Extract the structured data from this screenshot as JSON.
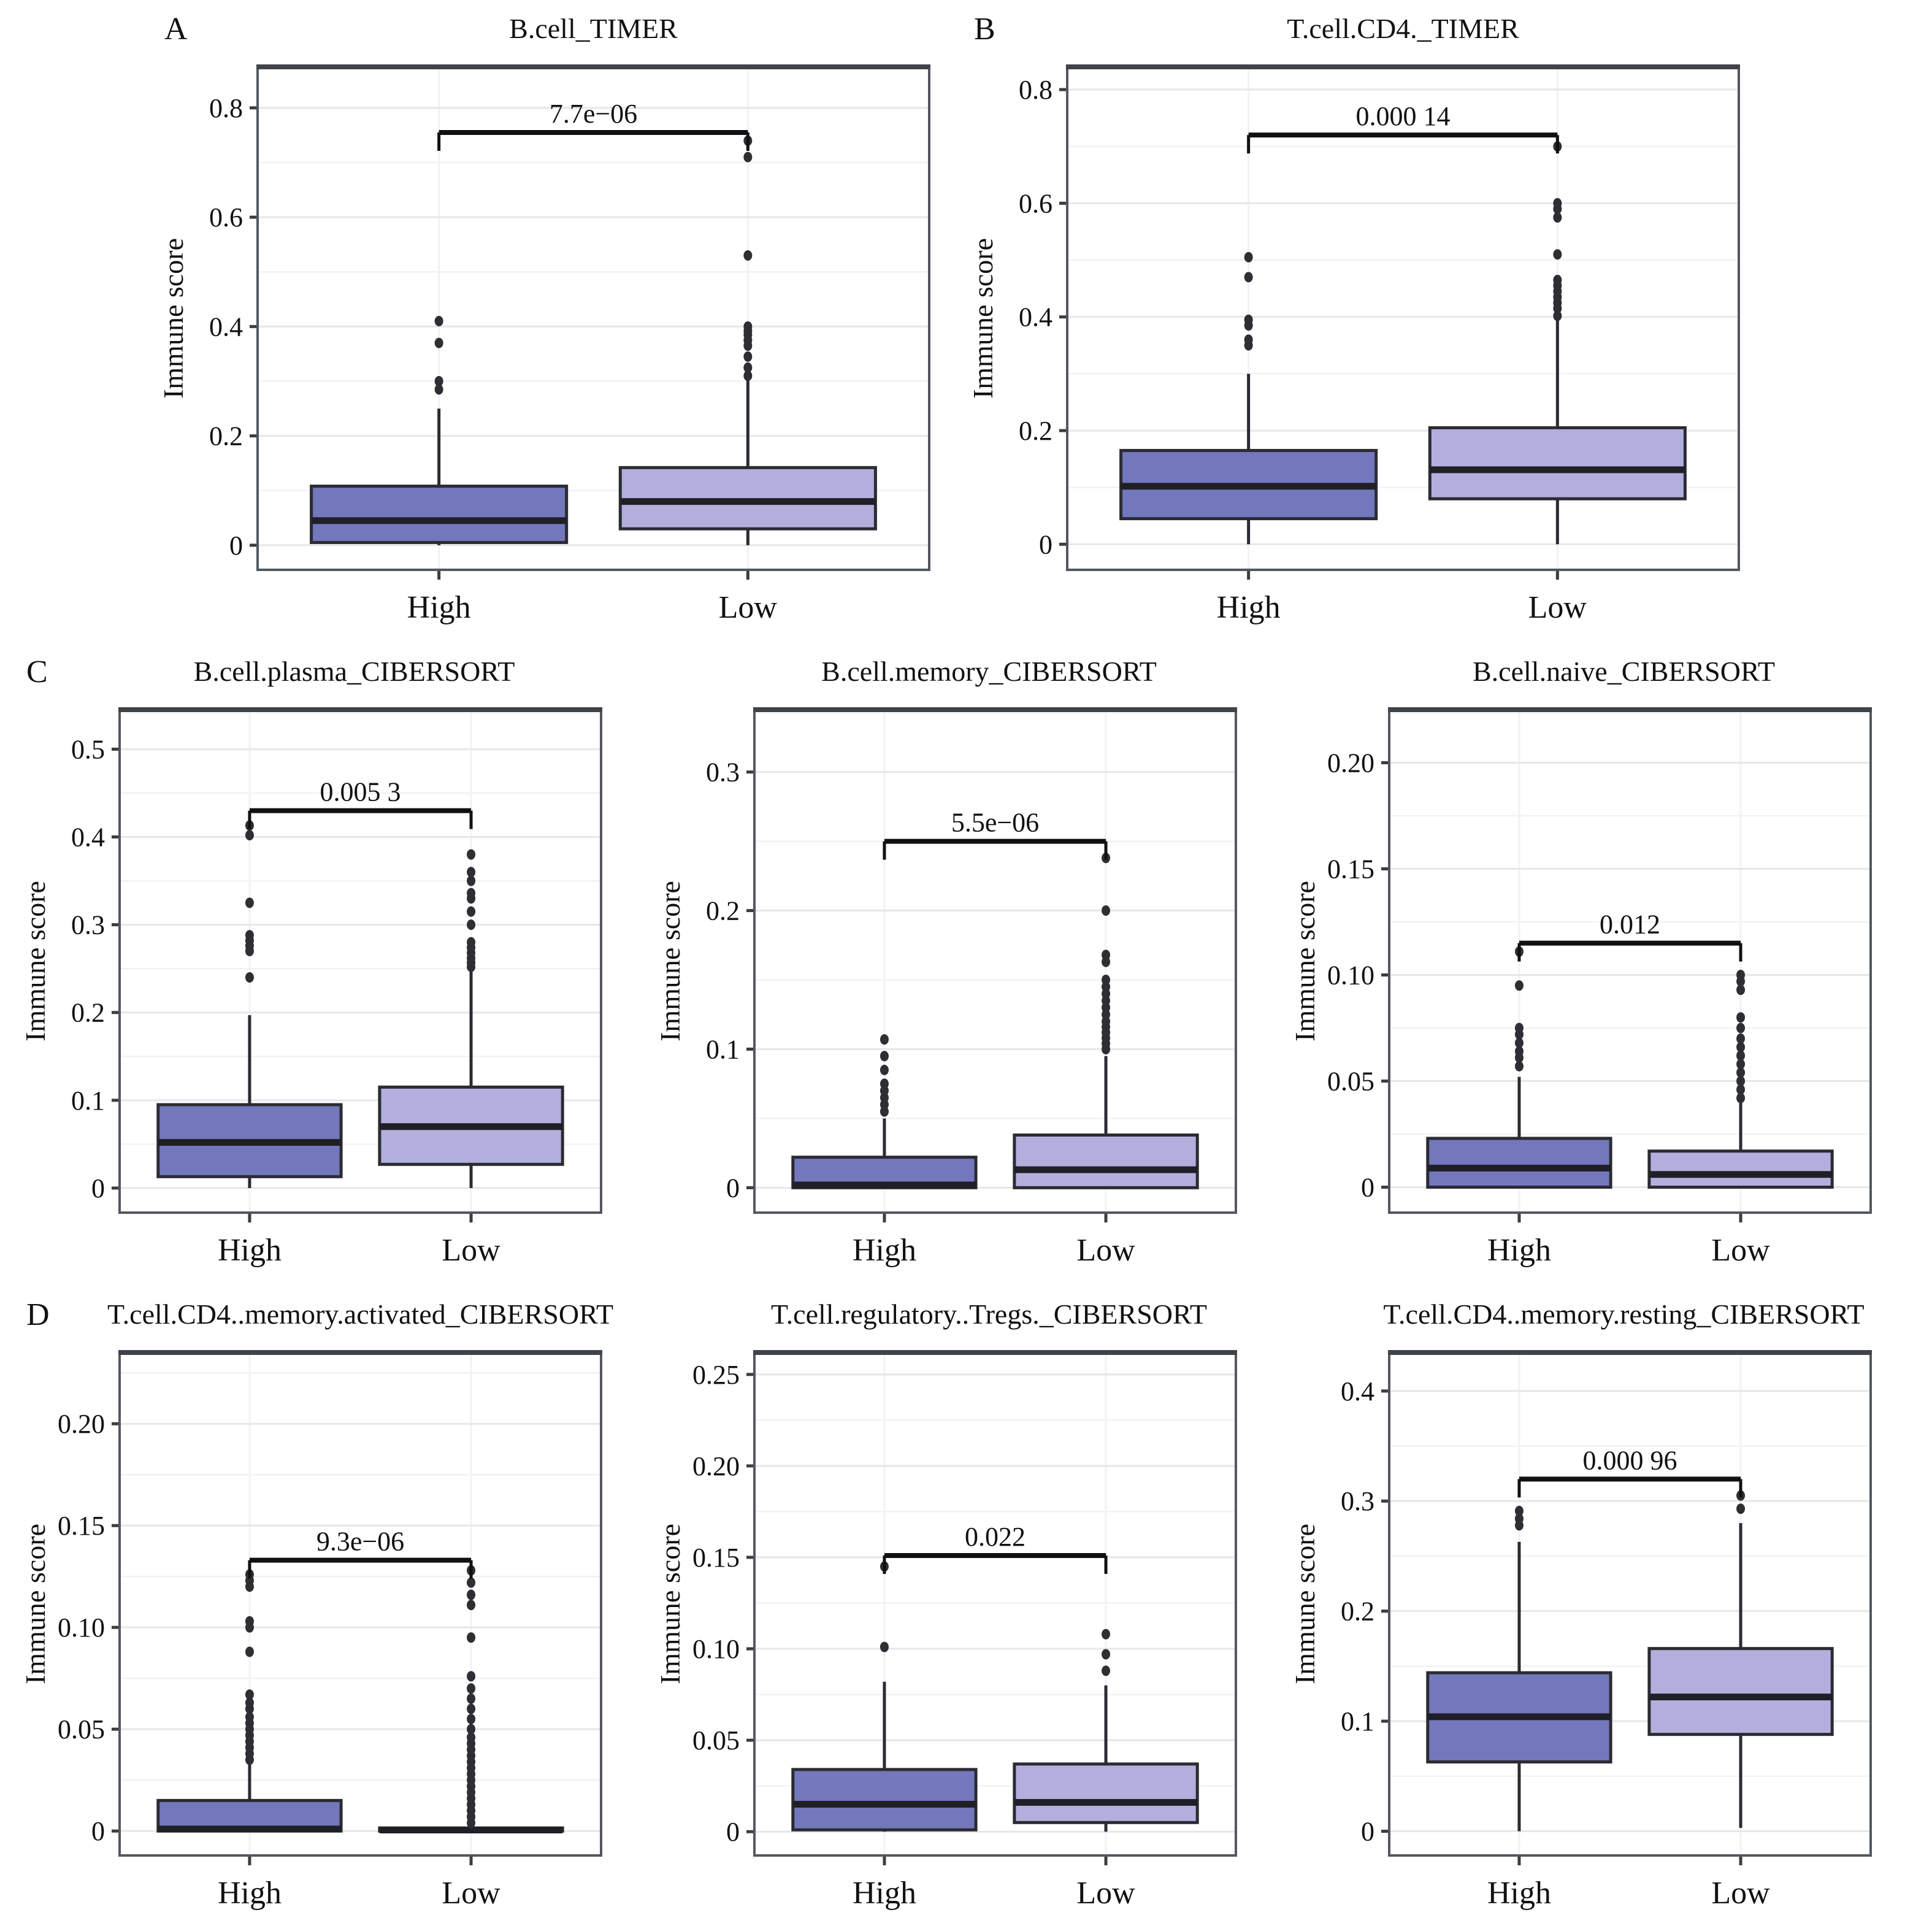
{
  "figure": {
    "background": "#ffffff",
    "ylabel_all": "Immune score"
  },
  "styles": {
    "high_fill": "#7377bb",
    "low_fill": "#b3afdd",
    "box_border": "#2b2b33",
    "median_color": "#1f1f26",
    "outlier_color": "#2e2e33",
    "grid_major": "#e6e6eb",
    "grid_minor": "#f2f2f5",
    "panel_border": "#54585e",
    "panel_border_top": "#404449",
    "tick_color": "#3c3c41",
    "text_color": "#111111",
    "bracket_color": "#111111"
  },
  "chart_data": [
    {
      "type": "box",
      "letter": "A",
      "title": "B.cell_TIMER",
      "ylabel": "Immune score",
      "pvalue": "7.7e−06",
      "bracket_y": 0.755,
      "ylim": [
        -0.045,
        0.875
      ],
      "yticks": [
        {
          "v": 0,
          "label": "0"
        },
        {
          "v": 0.2,
          "label": "0.2"
        },
        {
          "v": 0.4,
          "label": "0.4"
        },
        {
          "v": 0.6,
          "label": "0.6"
        },
        {
          "v": 0.8,
          "label": "0.8"
        }
      ],
      "categories": [
        "High",
        "Low"
      ],
      "groups": [
        {
          "label": "High",
          "fill": "high",
          "wlo": 0,
          "q1": 0.005,
          "med": 0.045,
          "q3": 0.108,
          "whi": 0.25,
          "outliers": [
            0.285,
            0.3,
            0.37,
            0.41
          ]
        },
        {
          "label": "Low",
          "fill": "low",
          "wlo": 0,
          "q1": 0.03,
          "med": 0.08,
          "q3": 0.142,
          "whi": 0.305,
          "outliers": [
            0.31,
            0.325,
            0.345,
            0.365,
            0.375,
            0.385,
            0.392,
            0.4,
            0.53,
            0.71,
            0.74
          ]
        }
      ]
    },
    {
      "type": "box",
      "letter": "B",
      "title": "T.cell.CD4._TIMER",
      "ylabel": "Immune score",
      "pvalue": "0.000 14",
      "bracket_y": 0.72,
      "ylim": [
        -0.045,
        0.84
      ],
      "yticks": [
        {
          "v": 0,
          "label": "0"
        },
        {
          "v": 0.2,
          "label": "0.2"
        },
        {
          "v": 0.4,
          "label": "0.4"
        },
        {
          "v": 0.6,
          "label": "0.6"
        },
        {
          "v": 0.8,
          "label": "0.8"
        }
      ],
      "categories": [
        "High",
        "Low"
      ],
      "groups": [
        {
          "label": "High",
          "fill": "high",
          "wlo": 0,
          "q1": 0.045,
          "med": 0.102,
          "q3": 0.165,
          "whi": 0.3,
          "outliers": [
            0.35,
            0.36,
            0.385,
            0.395,
            0.47,
            0.505
          ]
        },
        {
          "label": "Low",
          "fill": "low",
          "wlo": 0,
          "q1": 0.08,
          "med": 0.131,
          "q3": 0.205,
          "whi": 0.398,
          "outliers": [
            0.402,
            0.415,
            0.425,
            0.435,
            0.445,
            0.455,
            0.465,
            0.51,
            0.575,
            0.59,
            0.6,
            0.7
          ]
        }
      ]
    },
    {
      "type": "box",
      "letter": "C",
      "title": "B.cell.plasma_CIBERSORT",
      "ylabel": "Immune score",
      "pvalue": "0.005 3",
      "bracket_y": 0.43,
      "ylim": [
        -0.028,
        0.545
      ],
      "yticks": [
        {
          "v": 0,
          "label": "0"
        },
        {
          "v": 0.1,
          "label": "0.1"
        },
        {
          "v": 0.2,
          "label": "0.2"
        },
        {
          "v": 0.3,
          "label": "0.3"
        },
        {
          "v": 0.4,
          "label": "0.4"
        },
        {
          "v": 0.5,
          "label": "0.5"
        }
      ],
      "categories": [
        "High",
        "Low"
      ],
      "groups": [
        {
          "label": "High",
          "fill": "high",
          "wlo": 0,
          "q1": 0.013,
          "med": 0.052,
          "q3": 0.095,
          "whi": 0.197,
          "outliers": [
            0.24,
            0.27,
            0.276,
            0.282,
            0.288,
            0.325,
            0.402,
            0.413
          ]
        },
        {
          "label": "Low",
          "fill": "low",
          "wlo": 0,
          "q1": 0.027,
          "med": 0.07,
          "q3": 0.115,
          "whi": 0.248,
          "outliers": [
            0.252,
            0.257,
            0.262,
            0.268,
            0.274,
            0.28,
            0.3,
            0.315,
            0.33,
            0.336,
            0.35,
            0.36,
            0.38
          ]
        }
      ]
    },
    {
      "type": "box",
      "letter": "",
      "title": "B.cell.memory_CIBERSORT",
      "ylabel": "Immune score",
      "pvalue": "5.5e−06",
      "bracket_y": 0.25,
      "ylim": [
        -0.018,
        0.345
      ],
      "yticks": [
        {
          "v": 0,
          "label": "0"
        },
        {
          "v": 0.1,
          "label": "0.1"
        },
        {
          "v": 0.2,
          "label": "0.2"
        },
        {
          "v": 0.3,
          "label": "0.3"
        }
      ],
      "categories": [
        "High",
        "Low"
      ],
      "groups": [
        {
          "label": "High",
          "fill": "high",
          "wlo": 0,
          "q1": 0,
          "med": 0.002,
          "q3": 0.022,
          "whi": 0.05,
          "outliers": [
            0.055,
            0.06,
            0.065,
            0.07,
            0.075,
            0.085,
            0.095,
            0.107
          ]
        },
        {
          "label": "Low",
          "fill": "low",
          "wlo": 0,
          "q1": 0,
          "med": 0.013,
          "q3": 0.038,
          "whi": 0.095,
          "outliers": [
            0.1,
            0.104,
            0.108,
            0.112,
            0.116,
            0.12,
            0.125,
            0.13,
            0.135,
            0.14,
            0.145,
            0.15,
            0.163,
            0.168,
            0.2,
            0.238
          ]
        }
      ]
    },
    {
      "type": "box",
      "letter": "",
      "title": "B.cell.naive_CIBERSORT",
      "ylabel": "Immune score",
      "pvalue": "0.012",
      "bracket_y": 0.115,
      "ylim": [
        -0.012,
        0.225
      ],
      "yticks": [
        {
          "v": 0,
          "label": "0"
        },
        {
          "v": 0.05,
          "label": "0.05"
        },
        {
          "v": 0.1,
          "label": "0.10"
        },
        {
          "v": 0.15,
          "label": "0.15"
        },
        {
          "v": 0.2,
          "label": "0.20"
        }
      ],
      "categories": [
        "High",
        "Low"
      ],
      "groups": [
        {
          "label": "High",
          "fill": "high",
          "wlo": 0,
          "q1": 0,
          "med": 0.009,
          "q3": 0.023,
          "whi": 0.052,
          "outliers": [
            0.057,
            0.061,
            0.064,
            0.068,
            0.072,
            0.075,
            0.095,
            0.111
          ]
        },
        {
          "label": "Low",
          "fill": "low",
          "wlo": 0,
          "q1": 0,
          "med": 0.006,
          "q3": 0.017,
          "whi": 0.04,
          "outliers": [
            0.042,
            0.046,
            0.05,
            0.054,
            0.058,
            0.062,
            0.066,
            0.07,
            0.075,
            0.08,
            0.093,
            0.097,
            0.1
          ]
        }
      ]
    },
    {
      "type": "box",
      "letter": "D",
      "title": "T.cell.CD4..memory.activated_CIBERSORT",
      "ylabel": "Immune score",
      "pvalue": "9.3e−06",
      "bracket_y": 0.133,
      "ylim": [
        -0.012,
        0.235
      ],
      "yticks": [
        {
          "v": 0,
          "label": "0"
        },
        {
          "v": 0.05,
          "label": "0.05"
        },
        {
          "v": 0.1,
          "label": "0.10"
        },
        {
          "v": 0.15,
          "label": "0.15"
        },
        {
          "v": 0.2,
          "label": "0.20"
        }
      ],
      "categories": [
        "High",
        "Low"
      ],
      "groups": [
        {
          "label": "High",
          "fill": "high",
          "wlo": 0,
          "q1": 0,
          "med": 0.001,
          "q3": 0.015,
          "whi": 0.033,
          "outliers": [
            0.035,
            0.038,
            0.041,
            0.044,
            0.047,
            0.05,
            0.053,
            0.056,
            0.06,
            0.063,
            0.067,
            0.088,
            0.1,
            0.103,
            0.12,
            0.123,
            0.126
          ]
        },
        {
          "label": "Low",
          "fill": "low",
          "wlo": 0,
          "q1": 0,
          "med": 0.0005,
          "q3": 0.0015,
          "whi": 0.0015,
          "outliers": [
            0.004,
            0.007,
            0.01,
            0.013,
            0.016,
            0.019,
            0.022,
            0.025,
            0.028,
            0.031,
            0.034,
            0.037,
            0.04,
            0.043,
            0.046,
            0.05,
            0.055,
            0.06,
            0.065,
            0.07,
            0.076,
            0.095,
            0.111,
            0.116,
            0.122,
            0.128
          ]
        }
      ]
    },
    {
      "type": "box",
      "letter": "",
      "title": "T.cell.regulatory..Tregs._CIBERSORT",
      "ylabel": "Immune score",
      "pvalue": "0.022",
      "bracket_y": 0.151,
      "ylim": [
        -0.013,
        0.262
      ],
      "yticks": [
        {
          "v": 0,
          "label": "0"
        },
        {
          "v": 0.05,
          "label": "0.05"
        },
        {
          "v": 0.1,
          "label": "0.10"
        },
        {
          "v": 0.15,
          "label": "0.15"
        },
        {
          "v": 0.2,
          "label": "0.20"
        },
        {
          "v": 0.25,
          "label": "0.25"
        }
      ],
      "categories": [
        "High",
        "Low"
      ],
      "groups": [
        {
          "label": "High",
          "fill": "high",
          "wlo": 0,
          "q1": 0.001,
          "med": 0.015,
          "q3": 0.034,
          "whi": 0.082,
          "outliers": [
            0.101,
            0.145
          ]
        },
        {
          "label": "Low",
          "fill": "low",
          "wlo": 0,
          "q1": 0.005,
          "med": 0.016,
          "q3": 0.037,
          "whi": 0.08,
          "outliers": [
            0.088,
            0.097,
            0.108
          ]
        }
      ]
    },
    {
      "type": "box",
      "letter": "",
      "title": "T.cell.CD4..memory.resting_CIBERSORT",
      "ylabel": "Immune score",
      "pvalue": "0.000 96",
      "bracket_y": 0.32,
      "ylim": [
        -0.022,
        0.435
      ],
      "yticks": [
        {
          "v": 0,
          "label": "0"
        },
        {
          "v": 0.1,
          "label": "0.1"
        },
        {
          "v": 0.2,
          "label": "0.2"
        },
        {
          "v": 0.3,
          "label": "0.3"
        },
        {
          "v": 0.4,
          "label": "0.4"
        }
      ],
      "categories": [
        "High",
        "Low"
      ],
      "groups": [
        {
          "label": "High",
          "fill": "high",
          "wlo": 0,
          "q1": 0.063,
          "med": 0.104,
          "q3": 0.144,
          "whi": 0.263,
          "outliers": [
            0.278,
            0.284,
            0.291
          ]
        },
        {
          "label": "Low",
          "fill": "low",
          "wlo": 0.003,
          "q1": 0.088,
          "med": 0.122,
          "q3": 0.166,
          "whi": 0.28,
          "outliers": [
            0.293,
            0.305
          ]
        }
      ]
    }
  ]
}
